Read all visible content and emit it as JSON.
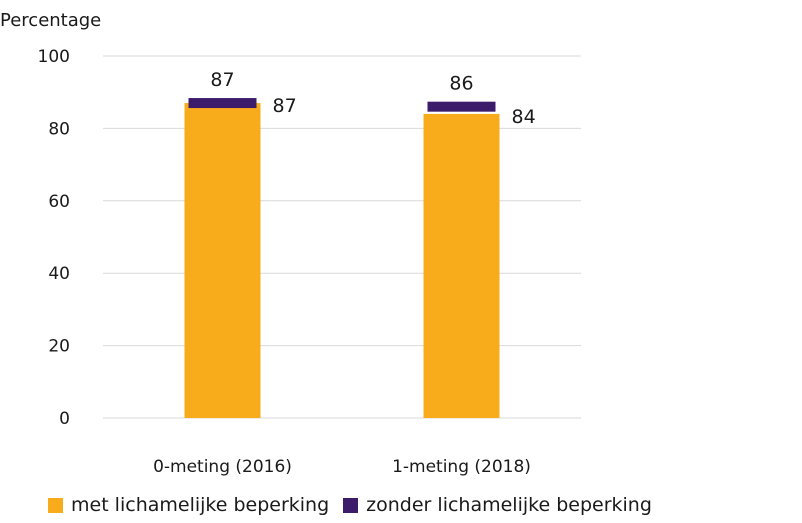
{
  "chart_data": {
    "type": "bar",
    "ylabel": "Percentage",
    "ylim": [
      0,
      100
    ],
    "yticks": [
      0,
      20,
      40,
      60,
      80,
      100
    ],
    "categories": [
      "0-meting (2016)",
      "1-meting (2018)"
    ],
    "series": [
      {
        "name": "met lichamelijke beperking",
        "values": [
          87,
          84
        ],
        "color": "#F9AC1B",
        "style": "bar"
      },
      {
        "name": "zonder lichamelijke beperking",
        "values": [
          87,
          86
        ],
        "color": "#3D1B6B",
        "style": "marker"
      }
    ],
    "grid": true,
    "legend_position": "bottom"
  }
}
